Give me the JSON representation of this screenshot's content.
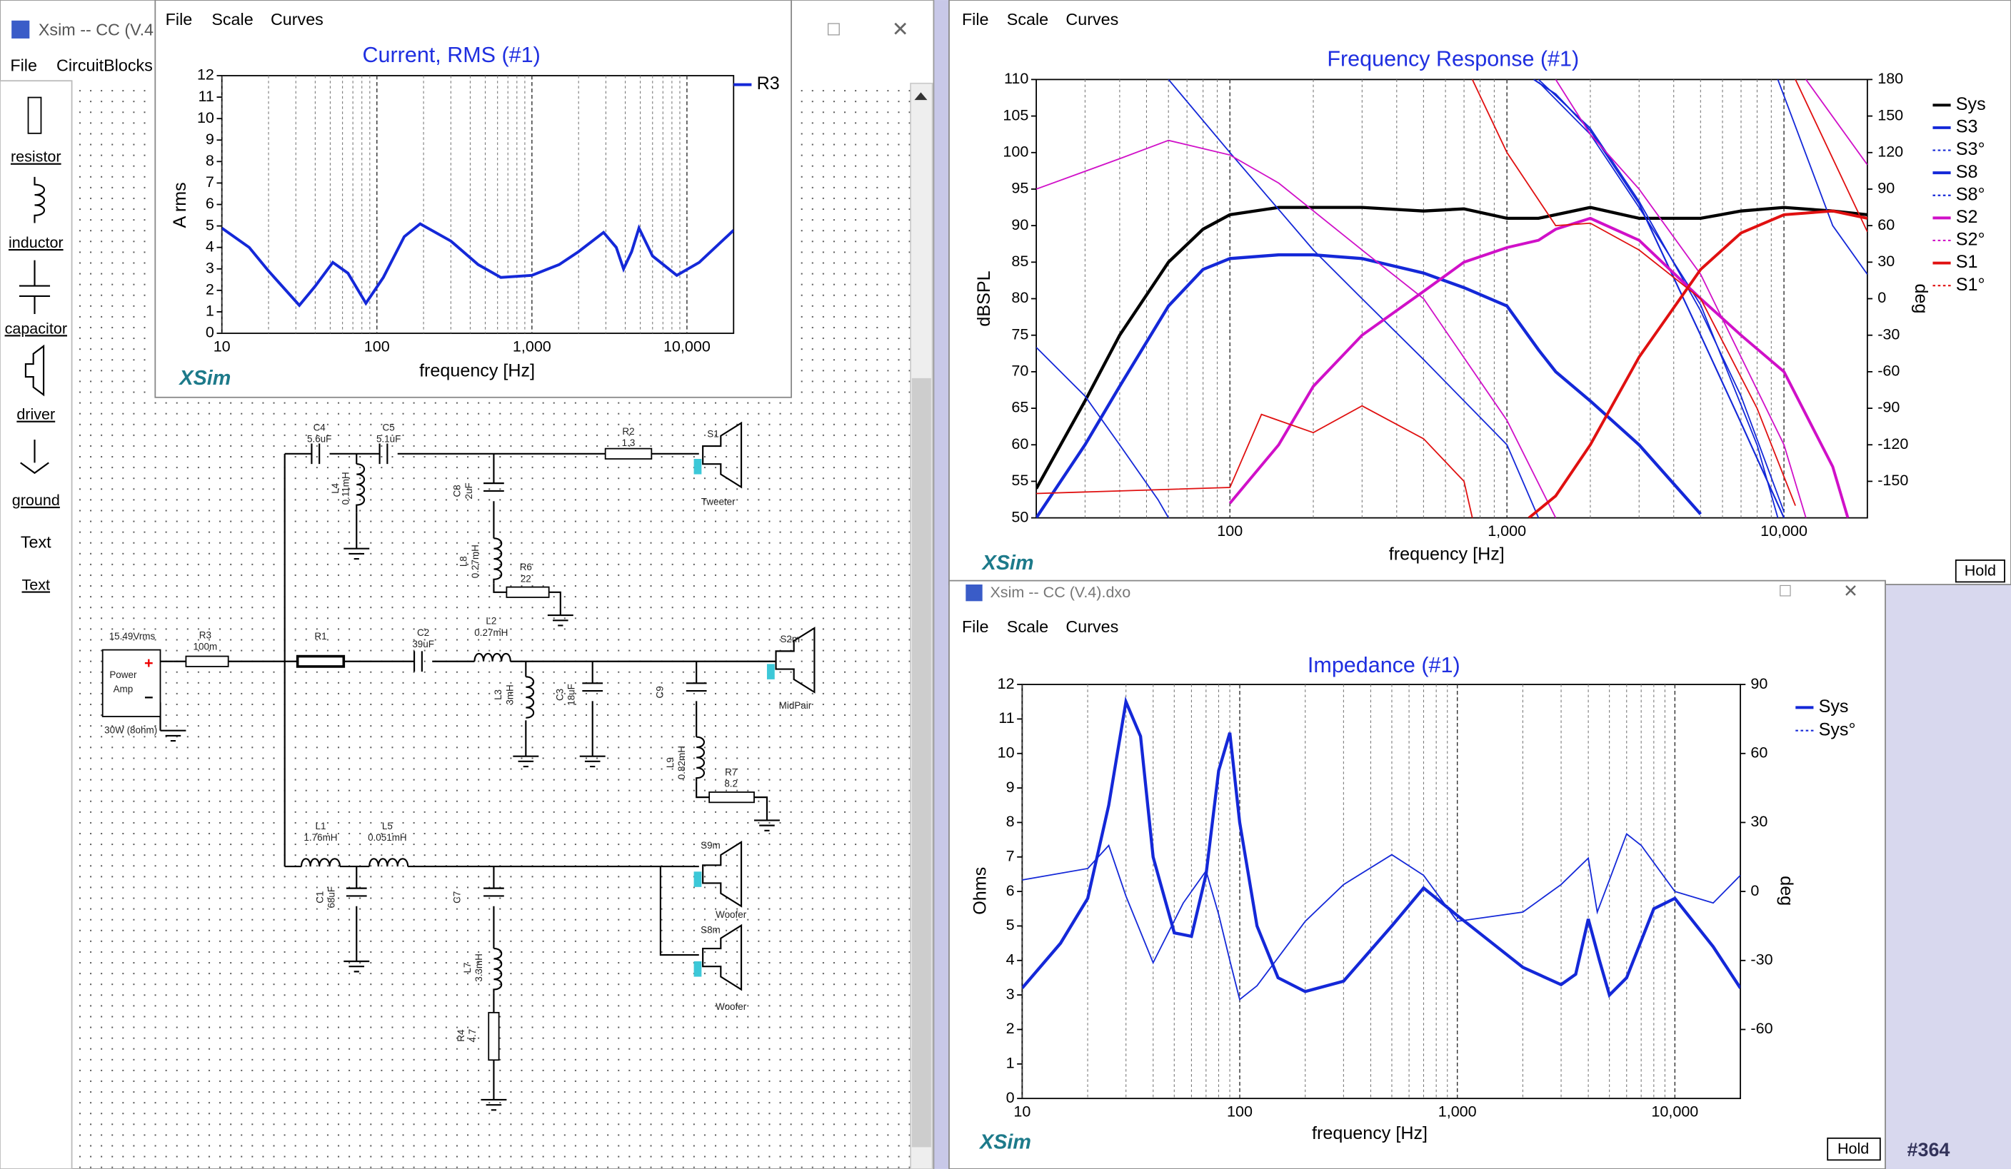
{
  "main_window": {
    "title": "Xsim -- CC (V.4",
    "menu": [
      "File",
      "CircuitBlocks"
    ]
  },
  "palette": [
    "resistor",
    "inductor",
    "capacitor",
    "driver",
    "ground",
    "Text",
    "Text"
  ],
  "chart_windows": [
    {
      "menu": [
        "File",
        "Scale",
        "Curves"
      ],
      "brand": "XSim"
    },
    {
      "menu": [
        "File",
        "Scale",
        "Curves"
      ],
      "brand": "XSim",
      "button": "Hold"
    },
    {
      "title": "Xsim -- CC (V.4).dxo",
      "menu": [
        "File",
        "Scale",
        "Curves"
      ],
      "brand": "XSim",
      "button": "Hold"
    }
  ],
  "schematic": {
    "labels": [
      "C4",
      "5.6uF",
      "C5",
      "5.1uF",
      "R2",
      "1.3",
      "S1",
      "L4",
      "0.11mH",
      "C8",
      "2uF",
      "L8",
      "0.27mH",
      "R6",
      "22",
      "15.49Vrms",
      "R3",
      "100m",
      "R1",
      "C2",
      "39uF",
      "L2",
      "0.27mH",
      "S2m",
      "L3",
      "3mH",
      "C3",
      "18uF",
      "C9",
      "L9",
      "0.82mH",
      "R7",
      "8.2",
      "Power",
      "Amp",
      "30W (8ohm)",
      "L1",
      "1.76mH",
      "L5",
      "0.051mH",
      "C1",
      "68uF",
      "C7",
      "L7",
      "3.3mH",
      "R4",
      "4.7",
      "S9m",
      "S8m",
      "Tweeter",
      "MidPair",
      "Woofer",
      "Woofer"
    ]
  },
  "footer": "#364",
  "chart_data": [
    {
      "type": "line",
      "title": "Current, RMS (#1)",
      "xlabel": "frequency [Hz]",
      "ylabel": "A rms",
      "log_x": true,
      "xlim": [
        10,
        20000
      ],
      "xticks": [
        10,
        100,
        {
          "value": 1000,
          "label": "1,000"
        },
        {
          "value": 10000,
          "label": "10,000"
        }
      ],
      "ylim": [
        0,
        12
      ],
      "yticks": [
        0,
        1,
        2,
        3,
        4,
        5,
        6,
        7,
        8,
        9,
        10,
        11,
        12
      ],
      "grid": true,
      "series": [
        {
          "name": "R3",
          "color": "#1428d8",
          "width": 2.2,
          "x": [
            10,
            15,
            20,
            31.6,
            40,
            52,
            65,
            85,
            110,
            150,
            190,
            300,
            450,
            630,
            1000,
            1500,
            2000,
            2900,
            3500,
            3900,
            4400,
            4900,
            6000,
            8600,
            12000,
            20000
          ],
          "values": [
            4.9,
            4.0,
            2.9,
            1.3,
            2.2,
            3.3,
            2.8,
            1.4,
            2.6,
            4.5,
            5.1,
            4.3,
            3.2,
            2.6,
            2.7,
            3.2,
            3.8,
            4.7,
            4.0,
            3.0,
            3.8,
            4.9,
            3.6,
            2.7,
            3.3,
            4.8
          ]
        }
      ]
    },
    {
      "type": "line",
      "title": "Frequency Response (#1)",
      "xlabel": "frequency [Hz]",
      "ylabel": "dBSPL",
      "y2label": "deg",
      "log_x": true,
      "xlim": [
        20,
        20000
      ],
      "xticks": [
        100,
        {
          "value": 1000,
          "label": "1,000"
        },
        {
          "value": 10000,
          "label": "10,000"
        }
      ],
      "ylim": [
        50,
        110
      ],
      "yticks": [
        50,
        55,
        60,
        65,
        70,
        75,
        80,
        85,
        90,
        95,
        100,
        105,
        110
      ],
      "y2lim": [
        -180,
        180
      ],
      "y2ticks": [
        -150,
        -120,
        -90,
        -60,
        -30,
        0,
        30,
        60,
        90,
        120,
        150,
        180
      ],
      "grid": true,
      "series": [
        {
          "name": "Sys",
          "color": "#000000",
          "width": 2.4,
          "x": [
            20,
            30,
            40,
            60,
            80,
            100,
            150,
            200,
            300,
            500,
            700,
            1000,
            1300,
            1500,
            2000,
            3000,
            5000,
            7000,
            10000,
            15000,
            20000
          ],
          "values": [
            54,
            66,
            75,
            85,
            89.5,
            91.5,
            92.5,
            92.5,
            92.5,
            92,
            92.3,
            91,
            91,
            91.5,
            92.5,
            91,
            91,
            92,
            92.5,
            92,
            91.5
          ]
        },
        {
          "name": "S3",
          "color": "#1428d8",
          "width": 2.4,
          "x": [
            20,
            30,
            40,
            60,
            80,
            100,
            150,
            200,
            300,
            500,
            700,
            1000,
            1300,
            1500,
            2000,
            3000,
            5000
          ],
          "values": [
            50,
            60,
            68,
            79,
            84,
            85.5,
            86,
            86,
            85.5,
            83.5,
            81.5,
            79,
            73,
            70,
            66,
            60,
            50.5
          ]
        },
        {
          "name": "S3°",
          "color": "#1428d8",
          "width": 1,
          "dashed": true,
          "axis": "y2",
          "x": [
            20,
            30,
            40,
            55,
            60,
            60,
            60,
            100,
            200,
            300,
            500,
            1000,
            1300,
            1300,
            1300,
            2000,
            3000,
            5000,
            7000,
            10000
          ],
          "values": [
            -40,
            -80,
            -120,
            -165,
            -180,
            null,
            180,
            120,
            40,
            0,
            -50,
            -120,
            -180,
            null,
            180,
            140,
            80,
            -10,
            -80,
            -175
          ]
        },
        {
          "name": "S8",
          "color": "#1428d8",
          "width": 1.2,
          "x": [
            1250,
            1500,
            2000,
            3000,
            5000,
            7000,
            10000
          ],
          "values": [
            110,
            108,
            103,
            93,
            75,
            63,
            50
          ]
        },
        {
          "name": "S8°",
          "color": "#1428d8",
          "width": 1,
          "dashed": true,
          "axis": "y2",
          "x": [
            1300,
            2000,
            3000,
            5000,
            8000,
            9500,
            9500,
            9500,
            15000,
            20000
          ],
          "values": [
            178,
            135,
            75,
            -5,
            -120,
            -180,
            null,
            180,
            60,
            20
          ]
        },
        {
          "name": "S2",
          "color": "#d010c8",
          "width": 2.2,
          "x": [
            100,
            150,
            200,
            300,
            500,
            700,
            1000,
            1300,
            1500,
            2000,
            3000,
            5000,
            7000,
            10000,
            15000,
            17000
          ],
          "values": [
            52,
            60,
            68,
            75,
            81,
            85,
            87,
            88,
            89.5,
            91,
            88,
            80,
            75,
            70,
            57,
            50
          ]
        },
        {
          "name": "S2°",
          "color": "#d010c8",
          "width": 1,
          "dashed": true,
          "axis": "y2",
          "x": [
            20,
            40,
            60,
            100,
            150,
            300,
            500,
            1000,
            1500,
            1500,
            1500,
            2000,
            3000,
            5000,
            10000,
            12000,
            12000,
            12000,
            20000
          ],
          "values": [
            90,
            115,
            130,
            118,
            95,
            40,
            0,
            -100,
            -180,
            null,
            180,
            135,
            90,
            20,
            -120,
            -180,
            null,
            180,
            110
          ]
        },
        {
          "name": "S1",
          "color": "#e01010",
          "width": 2.2,
          "x": [
            1200,
            1500,
            2000,
            3000,
            5000,
            7000,
            10000,
            15000,
            20000
          ],
          "values": [
            50,
            53,
            60,
            72,
            84,
            89,
            91.5,
            92,
            91
          ]
        },
        {
          "name": "S1°",
          "color": "#e01010",
          "width": 1,
          "dashed": true,
          "axis": "y2",
          "x": [
            20,
            100,
            130,
            200,
            300,
            500,
            700,
            750,
            750,
            750,
            1000,
            1500,
            2000,
            3000,
            5000,
            8000,
            11000,
            11000,
            11000,
            20000
          ],
          "values": [
            -160,
            -155,
            -95,
            -110,
            -88,
            -115,
            -150,
            -180,
            null,
            180,
            120,
            60,
            62,
            40,
            0,
            -90,
            -170,
            null,
            180,
            55
          ]
        }
      ]
    },
    {
      "type": "line",
      "title": "Impedance (#1)",
      "xlabel": "frequency [Hz]",
      "ylabel": "Ohms",
      "y2label": "deg",
      "log_x": true,
      "xlim": [
        10,
        20000
      ],
      "xticks": [
        10,
        100,
        {
          "value": 1000,
          "label": "1,000"
        },
        {
          "value": 10000,
          "label": "10,000"
        }
      ],
      "ylim": [
        0,
        12
      ],
      "yticks": [
        0,
        1,
        2,
        3,
        4,
        5,
        6,
        7,
        8,
        9,
        10,
        11,
        12
      ],
      "y2lim": [
        -90,
        90
      ],
      "y2ticks": [
        -60,
        -30,
        0,
        30,
        60,
        90
      ],
      "grid": true,
      "series": [
        {
          "name": "Sys",
          "color": "#1428d8",
          "width": 2.4,
          "x": [
            10,
            15,
            20,
            25,
            30,
            35,
            40,
            50,
            60,
            70,
            80,
            90,
            100,
            120,
            150,
            200,
            300,
            500,
            700,
            1000,
            2000,
            3000,
            3500,
            4000,
            4500,
            5000,
            6000,
            8000,
            10000,
            15000,
            20000
          ],
          "values": [
            3.2,
            4.5,
            5.8,
            8.5,
            11.5,
            10.5,
            7,
            4.8,
            4.7,
            6.5,
            9.5,
            10.6,
            8,
            5,
            3.5,
            3.1,
            3.4,
            5,
            6.1,
            5.3,
            3.8,
            3.3,
            3.6,
            5.2,
            4.0,
            3.0,
            3.5,
            5.5,
            5.8,
            4.4,
            3.2
          ]
        },
        {
          "name": "Sys°",
          "color": "#1428d8",
          "width": 1,
          "dashed": true,
          "axis": "y2",
          "x": [
            10,
            20,
            25,
            30,
            40,
            55,
            70,
            80,
            90,
            100,
            120,
            200,
            300,
            500,
            700,
            1000,
            2000,
            3000,
            4000,
            4400,
            5000,
            6000,
            7000,
            10000,
            15000,
            20000
          ],
          "values": [
            5,
            10,
            20,
            -2,
            -31,
            -5,
            9,
            -10,
            -30,
            -47,
            -41,
            -13,
            3,
            16,
            7,
            -13,
            -9,
            3,
            14.5,
            -9,
            5,
            25,
            20,
            0,
            -5,
            7
          ]
        }
      ]
    }
  ]
}
